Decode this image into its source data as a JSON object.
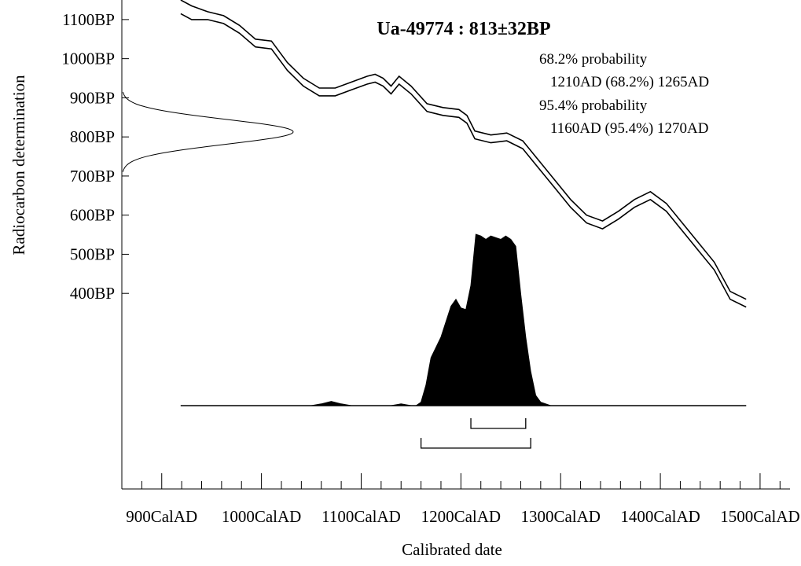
{
  "chart_data": {
    "type": "area",
    "title": "Ua-49774 : 813±32BP",
    "xlabel": "Calibrated date",
    "ylabel": "Radiocarbon determination",
    "x_unit": "CalAD",
    "y_unit": "BP",
    "x_range": [
      860,
      1530
    ],
    "y_range": [
      -100,
      1150
    ],
    "x_ticks": [
      900,
      1000,
      1100,
      1200,
      1300,
      1400,
      1500
    ],
    "x_tick_labels": [
      "900CalAD",
      "1000CalAD",
      "1100CalAD",
      "1200CalAD",
      "1300CalAD",
      "1400CalAD",
      "1500CalAD"
    ],
    "x_minor_step": 20,
    "y_ticks": [
      400,
      500,
      600,
      700,
      800,
      900,
      1000,
      1100
    ],
    "y_tick_labels": [
      "400BP",
      "500BP",
      "600BP",
      "700BP",
      "800BP",
      "900BP",
      "1000BP",
      "1100BP"
    ],
    "probability_text": [
      "68.2% probability",
      "1210AD (68.2%) 1265AD",
      "95.4% probability",
      "1160AD (95.4%) 1270AD"
    ],
    "ranges": [
      {
        "level": "68.2%",
        "from": 1210,
        "to": 1265
      },
      {
        "level": "95.4%",
        "from": 1160,
        "to": 1270
      }
    ],
    "measurement": {
      "mean": 813,
      "sd": 32
    },
    "calibration_curve": {
      "x": [
        919,
        930,
        946,
        962,
        978,
        994,
        1010,
        1026,
        1042,
        1058,
        1074,
        1090,
        1106,
        1114,
        1122,
        1130,
        1138,
        1150,
        1166,
        1182,
        1198,
        1206,
        1214,
        1230,
        1246,
        1262,
        1278,
        1294,
        1310,
        1326,
        1342,
        1358,
        1374,
        1390,
        1406,
        1422,
        1438,
        1454,
        1470,
        1486
      ],
      "upper": [
        1150,
        1135,
        1120,
        1110,
        1085,
        1050,
        1045,
        990,
        950,
        925,
        925,
        940,
        955,
        960,
        950,
        930,
        955,
        930,
        885,
        875,
        870,
        855,
        815,
        805,
        810,
        790,
        740,
        690,
        640,
        600,
        585,
        610,
        640,
        660,
        630,
        580,
        530,
        480,
        405,
        385
      ],
      "lower": [
        1115,
        1100,
        1100,
        1090,
        1065,
        1030,
        1025,
        970,
        930,
        905,
        905,
        920,
        935,
        940,
        930,
        910,
        935,
        910,
        865,
        855,
        850,
        835,
        795,
        785,
        790,
        770,
        720,
        670,
        620,
        580,
        565,
        590,
        620,
        640,
        610,
        560,
        510,
        460,
        385,
        365
      ]
    },
    "calibrated_distribution": {
      "x": [
        919,
        1050,
        1060,
        1070,
        1080,
        1090,
        1100,
        1130,
        1140,
        1150,
        1155,
        1160,
        1165,
        1170,
        1180,
        1190,
        1195,
        1200,
        1205,
        1210,
        1215,
        1220,
        1225,
        1230,
        1235,
        1240,
        1245,
        1250,
        1255,
        1260,
        1265,
        1270,
        1275,
        1280,
        1290,
        1300,
        1486
      ],
      "density": [
        0,
        0,
        0.01,
        0.025,
        0.01,
        0,
        0,
        0,
        0.01,
        0,
        0,
        0.02,
        0.12,
        0.28,
        0.4,
        0.58,
        0.62,
        0.57,
        0.56,
        0.7,
        1.0,
        0.99,
        0.97,
        0.99,
        0.98,
        0.97,
        0.99,
        0.97,
        0.93,
        0.65,
        0.4,
        0.2,
        0.06,
        0.02,
        0,
        0,
        0
      ]
    }
  }
}
